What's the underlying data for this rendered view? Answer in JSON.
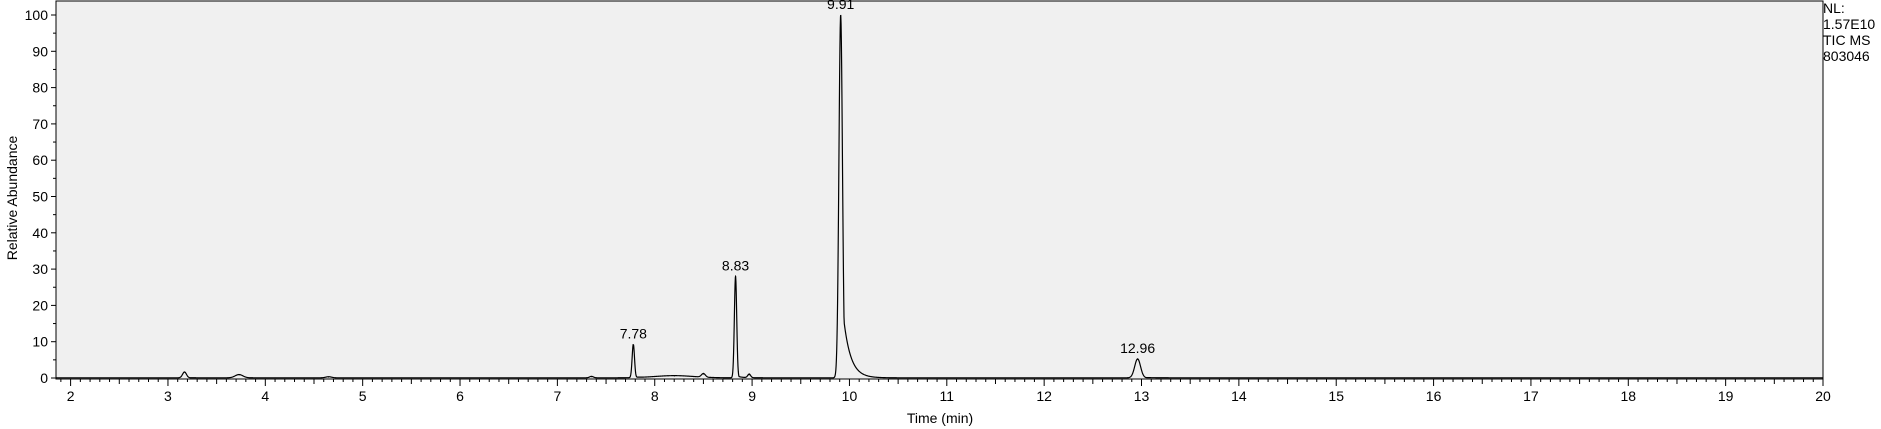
{
  "info_panel": {
    "lines": [
      "NL:",
      "1.57E10",
      "TIC  MS",
      "803046"
    ]
  },
  "chart_data": {
    "type": "line",
    "xlabel": "Time (min)",
    "ylabel": "Relative Abundance",
    "xlim": [
      1.85,
      20.0
    ],
    "ylim": [
      0,
      100
    ],
    "x_ticks": [
      2,
      3,
      4,
      5,
      6,
      7,
      8,
      9,
      10,
      11,
      12,
      13,
      14,
      15,
      16,
      17,
      18,
      19,
      20
    ],
    "y_ticks": [
      0,
      10,
      20,
      30,
      40,
      50,
      60,
      70,
      80,
      90,
      100
    ],
    "grid": false,
    "peaks": [
      {
        "x": 3.17,
        "y": 1.6,
        "width": 0.02
      },
      {
        "x": 3.73,
        "y": 0.9,
        "width": 0.04
      },
      {
        "x": 4.65,
        "y": 0.3,
        "width": 0.03
      },
      {
        "x": 7.35,
        "y": 0.4,
        "width": 0.02
      },
      {
        "x": 7.78,
        "y": 9.2,
        "width": 0.012,
        "label": "7.78"
      },
      {
        "x": 8.2,
        "y": 0.6,
        "width": 0.2
      },
      {
        "x": 8.5,
        "y": 1.0,
        "width": 0.02
      },
      {
        "x": 8.83,
        "y": 28.0,
        "width": 0.012,
        "label": "8.83"
      },
      {
        "x": 8.97,
        "y": 1.0,
        "width": 0.015
      },
      {
        "x": 9.91,
        "y": 100.0,
        "width": 0.018,
        "label": "9.91"
      },
      {
        "x": 12.96,
        "y": 5.2,
        "width": 0.03,
        "label": "12.96"
      }
    ]
  }
}
